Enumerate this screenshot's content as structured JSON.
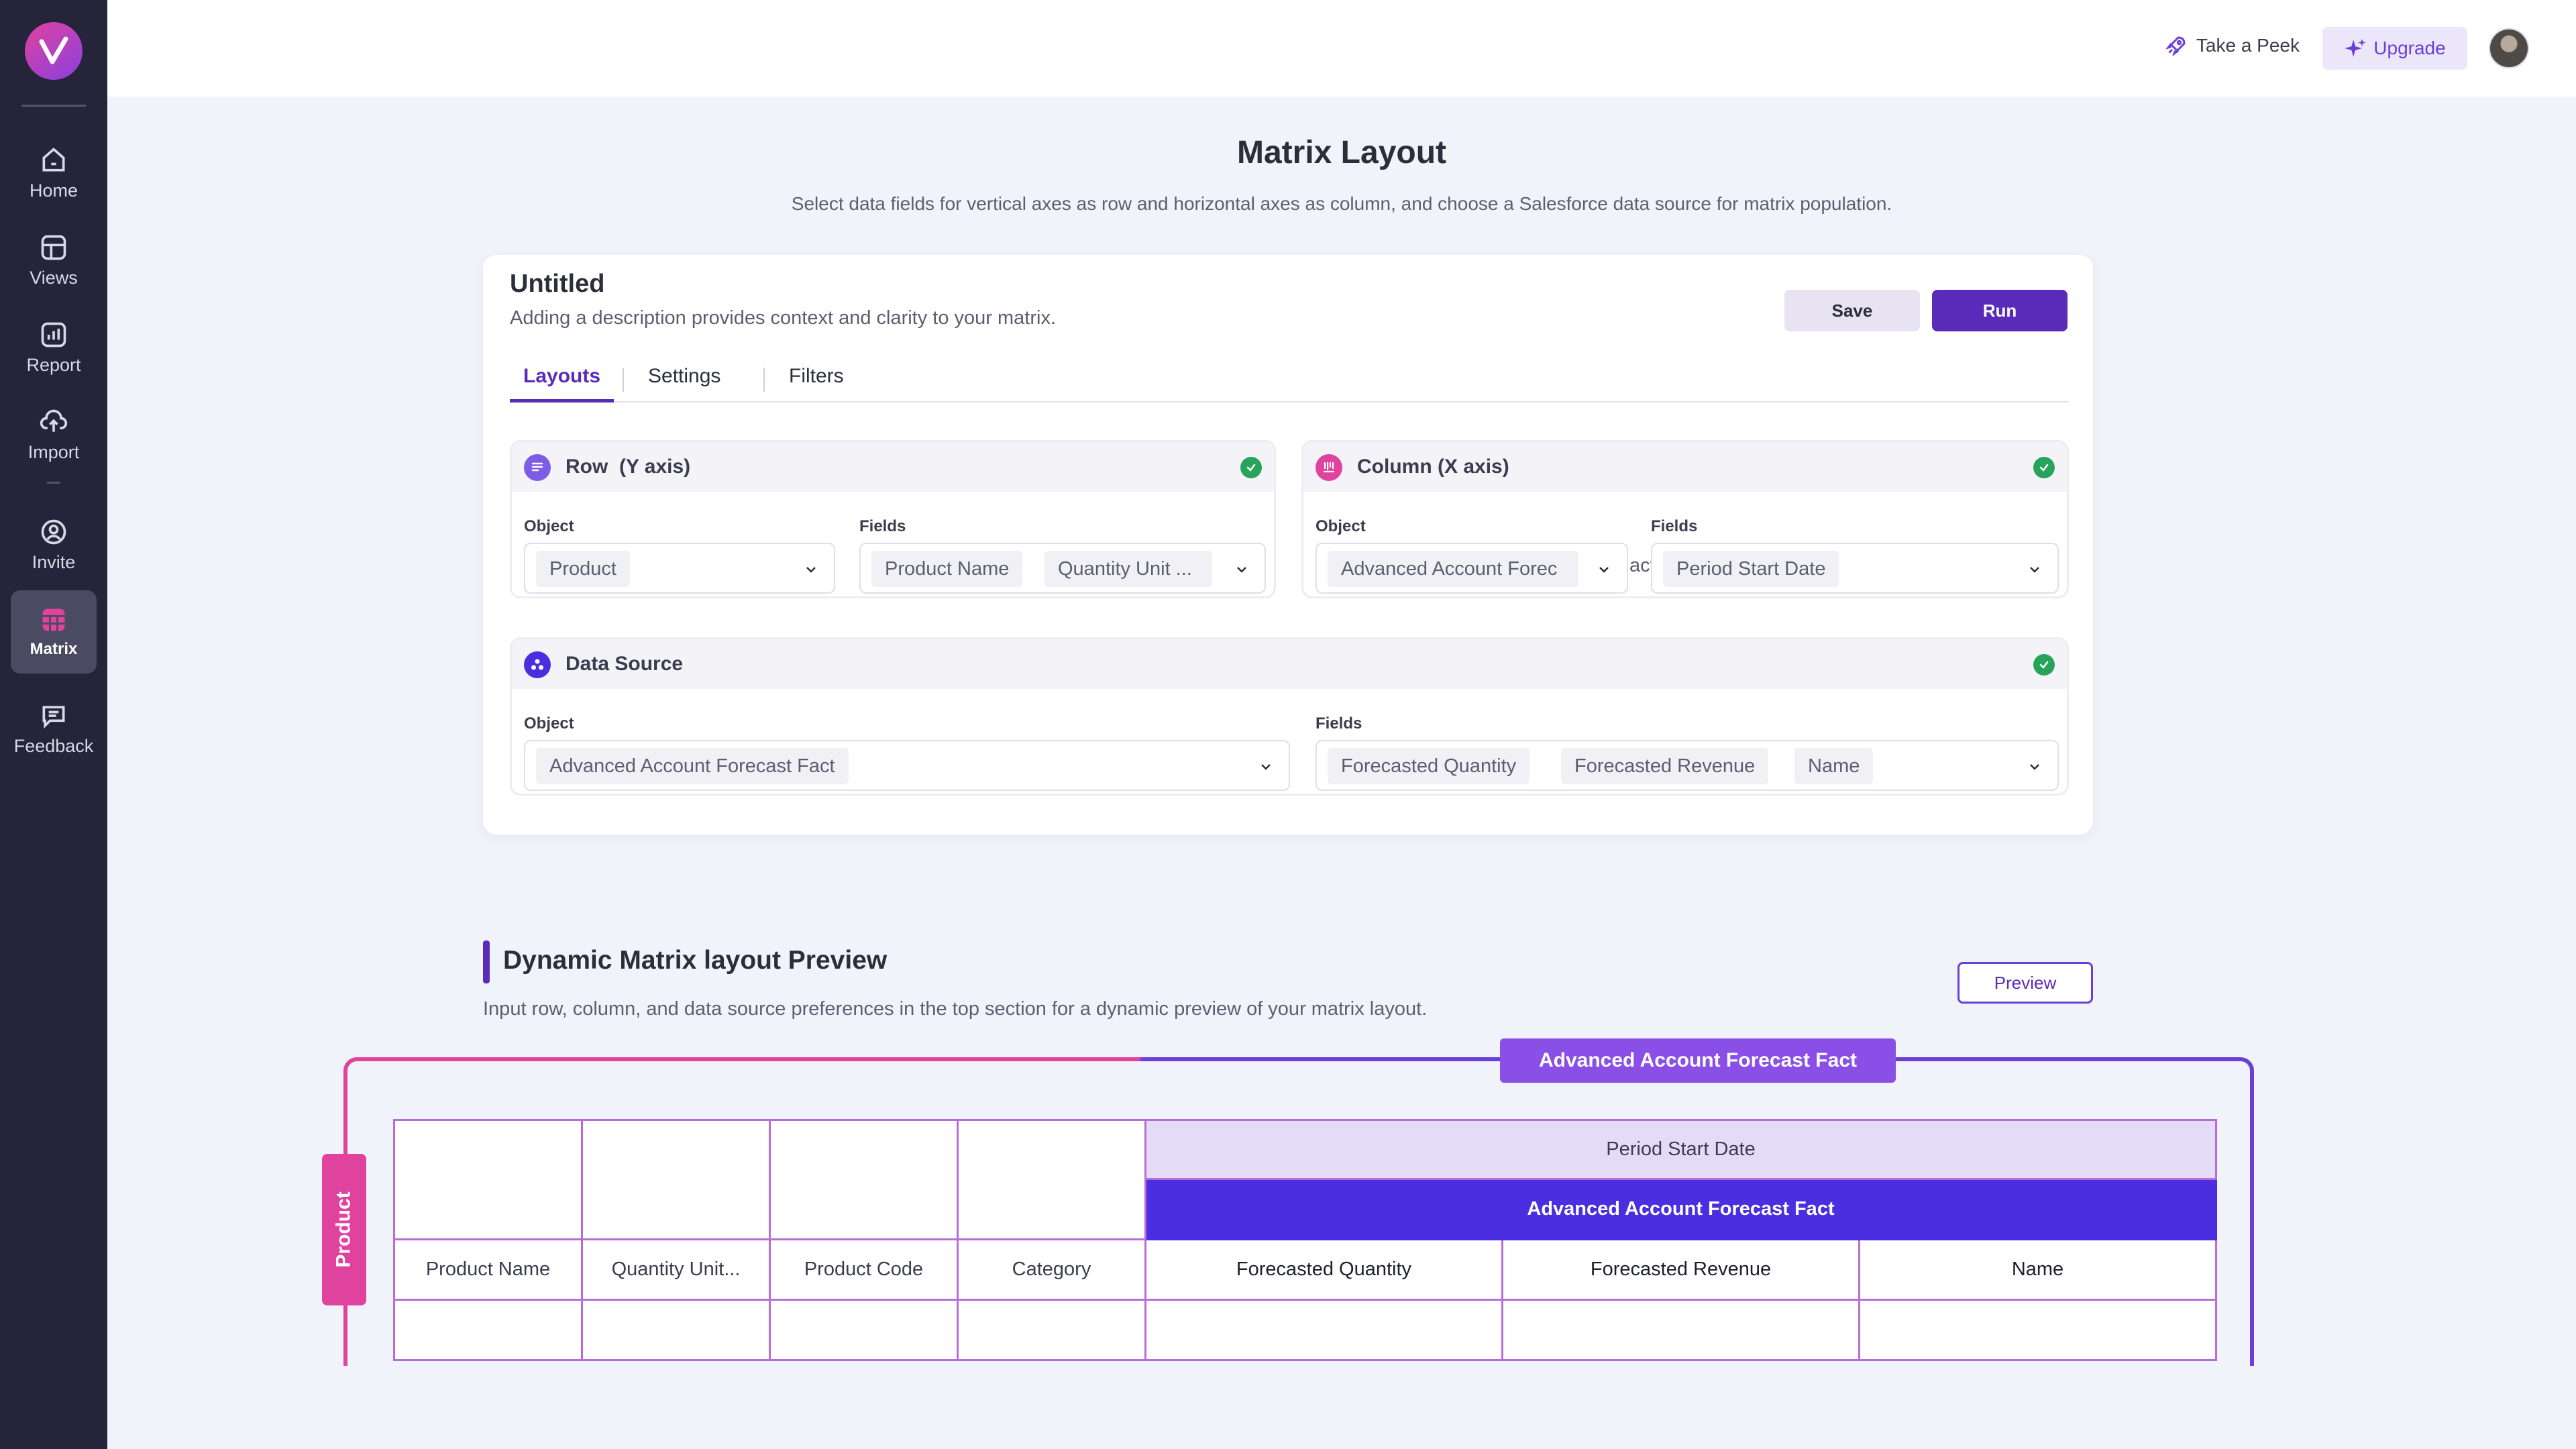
{
  "sidebar": {
    "items": [
      {
        "label": "Home",
        "icon": "home-icon"
      },
      {
        "label": "Views",
        "icon": "layout-icon"
      },
      {
        "label": "Report",
        "icon": "report-icon"
      },
      {
        "label": "Import",
        "icon": "upload-icon"
      },
      {
        "label": "Invite",
        "icon": "invite-icon"
      },
      {
        "label": "Matrix",
        "icon": "grid-icon",
        "active": true
      },
      {
        "label": "Feedback",
        "icon": "message-icon"
      }
    ]
  },
  "header": {
    "take_peek": "Take a Peek",
    "upgrade": "Upgrade"
  },
  "page": {
    "title": "Matrix Layout",
    "subtitle": "Select data fields for vertical axes as row and horizontal axes as column, and choose a Salesforce data source for matrix population."
  },
  "matrix": {
    "name": "Untitled",
    "description": "Adding a description provides context and clarity to your matrix.",
    "save_label": "Save",
    "run_label": "Run",
    "tabs": [
      "Layouts",
      "Settings",
      "Filters"
    ]
  },
  "row_panel": {
    "title": "Row  (Y axis)",
    "object_label": "Object",
    "fields_label": "Fields",
    "object_value": "Product",
    "fields": [
      "Product Name",
      "Quantity Unit ..."
    ]
  },
  "column_panel": {
    "title": "Column (X axis)",
    "object_label": "Object",
    "fields_label": "Fields",
    "object_value": "Advanced Account Forec",
    "object_overflow": "act",
    "fields": [
      "Period Start Date"
    ]
  },
  "data_source_panel": {
    "title": "Data Source",
    "object_label": "Object",
    "fields_label": "Fields",
    "object_value": "Advanced Account Forecast Fact",
    "fields": [
      "Forecasted Quantity",
      "Forecasted Revenue",
      "Name"
    ]
  },
  "preview": {
    "title": "Dynamic Matrix layout Preview",
    "subtitle": "Input row, column, and data source preferences in the top section for a dynamic preview of your matrix layout.",
    "button_label": "Preview",
    "frame_label": "Advanced Account Forecast Fact",
    "row_object_tag": "Product",
    "column_header": "Period Start Date",
    "fact_header": "Advanced Account Forecast Fact",
    "row_columns": [
      "Product Name",
      "Quantity Unit...",
      "Product Code",
      "Category"
    ],
    "value_columns": [
      "Forecasted Quantity",
      "Forecasted Revenue",
      "Name"
    ]
  },
  "colors": {
    "accent": "#5a2bb8",
    "pink": "#e0439e",
    "sidebar": "#25243a",
    "success": "#27a35a"
  }
}
